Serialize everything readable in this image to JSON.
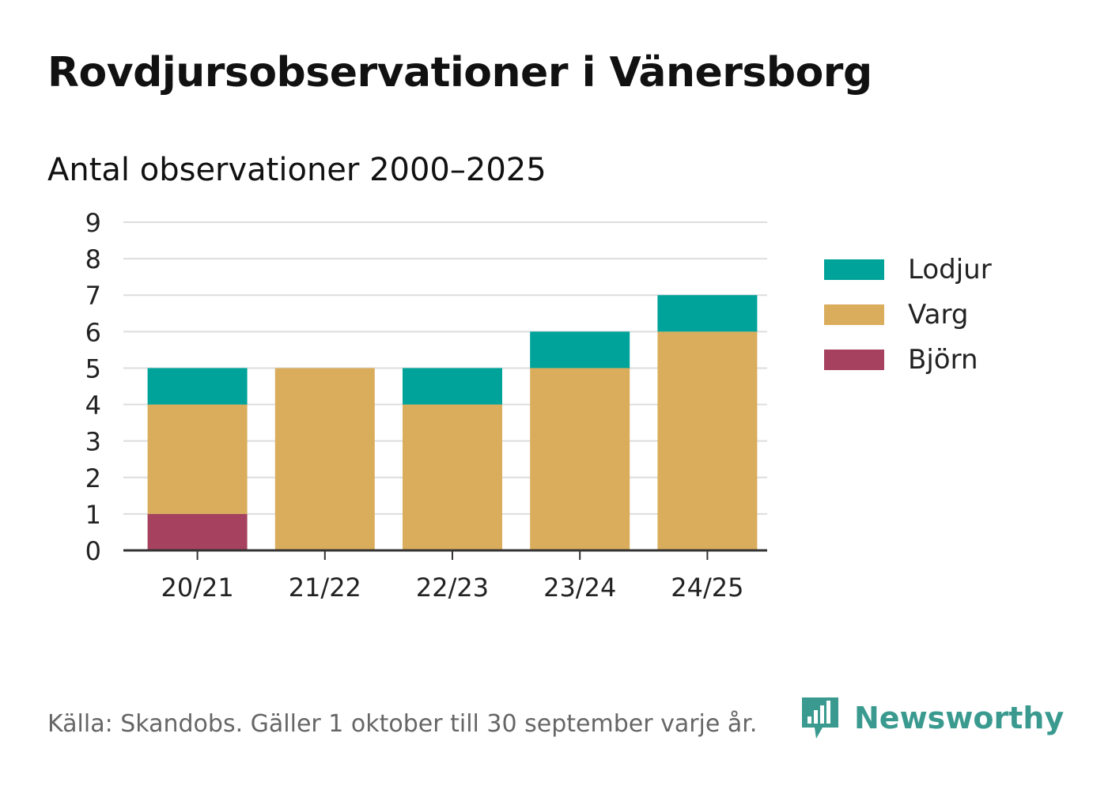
{
  "header": {
    "title": "Rovdjursobservationer i Vänersborg",
    "subtitle": "Antal observationer 2000–2025"
  },
  "footer": {
    "source": "Källa: Skandobs. Gäller 1 oktober till 30 september varje år.",
    "brand": "Newsworthy",
    "brand_color": "#3a9a8f"
  },
  "chart_data": {
    "type": "bar",
    "stacked": true,
    "title": "Rovdjursobservationer i Vänersborg",
    "subtitle": "Antal observationer 2000–2025",
    "xlabel": "",
    "ylabel": "",
    "categories": [
      "20/21",
      "21/22",
      "22/23",
      "23/24",
      "24/25"
    ],
    "ylim": [
      0,
      9
    ],
    "yticks": [
      0,
      1,
      2,
      3,
      4,
      5,
      6,
      7,
      8,
      9
    ],
    "grid": true,
    "legend_position": "right",
    "series": [
      {
        "name": "Björn",
        "color": "#a6425f",
        "values": [
          1,
          0,
          0,
          0,
          0
        ]
      },
      {
        "name": "Varg",
        "color": "#d9ad5c",
        "values": [
          3,
          5,
          4,
          5,
          6
        ]
      },
      {
        "name": "Lodjur",
        "color": "#00a39a",
        "values": [
          1,
          0,
          1,
          1,
          1
        ]
      }
    ],
    "legend_order": [
      "Lodjur",
      "Varg",
      "Björn"
    ]
  }
}
